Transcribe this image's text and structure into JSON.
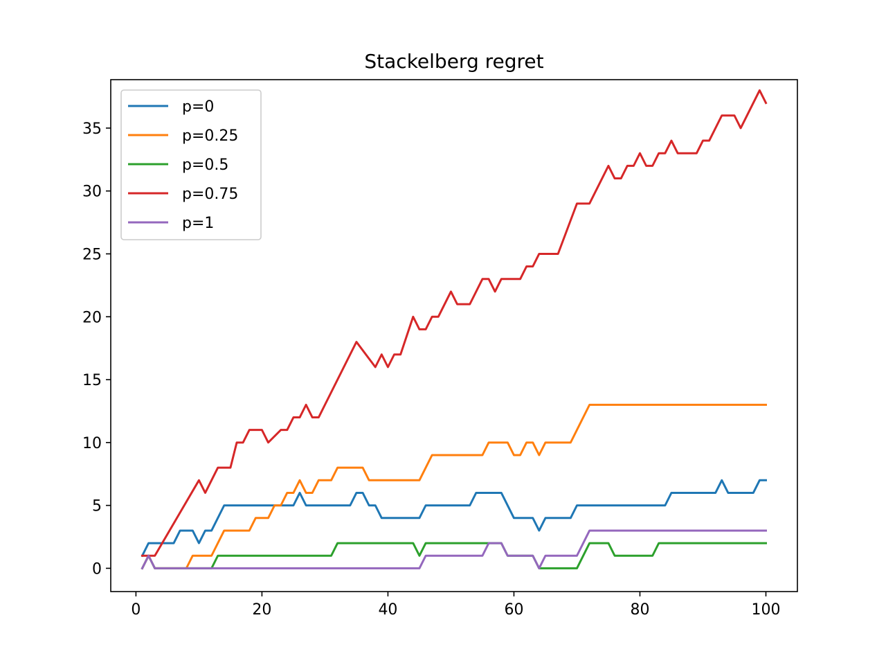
{
  "chart_data": {
    "type": "line",
    "title": "Stackelberg regret",
    "xlabel": "",
    "ylabel": "",
    "xlim": [
      -4,
      105
    ],
    "ylim": [
      -1.85,
      38.85
    ],
    "xticks": [
      0,
      20,
      40,
      60,
      80,
      100
    ],
    "yticks": [
      0,
      5,
      10,
      15,
      20,
      25,
      30,
      35
    ],
    "grid": false,
    "legend_position": "top-left",
    "series": [
      {
        "name": "p=0",
        "color": "#1f77b4",
        "x": [
          1,
          2,
          6,
          7,
          9,
          10,
          11,
          12,
          14,
          25,
          26,
          27,
          34,
          35,
          36,
          37,
          38,
          39,
          45,
          46,
          53,
          54,
          58,
          60,
          63,
          64,
          65,
          69,
          70,
          84,
          85,
          92,
          93,
          94,
          98,
          99,
          100
        ],
        "y": [
          1,
          2,
          2,
          3,
          3,
          2,
          3,
          3,
          5,
          5,
          6,
          5,
          5,
          6,
          6,
          5,
          5,
          4,
          4,
          5,
          5,
          6,
          6,
          4,
          4,
          3,
          4,
          4,
          5,
          5,
          6,
          6,
          7,
          6,
          6,
          7,
          7
        ]
      },
      {
        "name": "p=0.25",
        "color": "#ff7f0e",
        "x": [
          1,
          2,
          3,
          8,
          9,
          12,
          14,
          18,
          19,
          21,
          22,
          23,
          24,
          25,
          26,
          27,
          28,
          29,
          31,
          32,
          35,
          36,
          37,
          44,
          45,
          47,
          55,
          56,
          59,
          60,
          61,
          62,
          63,
          64,
          65,
          69,
          72,
          100
        ],
        "y": [
          0,
          1,
          0,
          0,
          1,
          1,
          3,
          3,
          4,
          4,
          5,
          5,
          6,
          6,
          7,
          6,
          6,
          7,
          7,
          8,
          8,
          8,
          7,
          7,
          7,
          9,
          9,
          10,
          10,
          9,
          9,
          10,
          10,
          9,
          10,
          10,
          13,
          13
        ]
      },
      {
        "name": "p=0.5",
        "color": "#2ca02c",
        "x": [
          1,
          2,
          3,
          12,
          13,
          31,
          32,
          44,
          45,
          46,
          55,
          56,
          58,
          59,
          63,
          64,
          69,
          70,
          72,
          75,
          76,
          82,
          83,
          100
        ],
        "y": [
          0,
          1,
          0,
          0,
          1,
          1,
          2,
          2,
          1,
          2,
          2,
          2,
          2,
          1,
          1,
          0,
          0,
          0,
          2,
          2,
          1,
          1,
          2,
          2
        ]
      },
      {
        "name": "p=0.75",
        "color": "#d62728",
        "x": [
          1,
          3,
          10,
          11,
          12,
          13,
          15,
          16,
          17,
          18,
          19,
          20,
          21,
          23,
          24,
          25,
          26,
          27,
          28,
          29,
          30,
          35,
          38,
          39,
          40,
          41,
          42,
          44,
          45,
          46,
          47,
          48,
          50,
          51,
          53,
          55,
          56,
          57,
          58,
          59,
          61,
          62,
          63,
          64,
          67,
          70,
          72,
          75,
          76,
          77,
          78,
          79,
          80,
          81,
          82,
          83,
          84,
          85,
          86,
          89,
          90,
          91,
          93,
          95,
          96,
          99,
          100
        ],
        "y": [
          1,
          1,
          7,
          6,
          7,
          8,
          8,
          10,
          10,
          11,
          11,
          11,
          10,
          11,
          11,
          12,
          12,
          13,
          12,
          12,
          13,
          18,
          16,
          17,
          16,
          17,
          17,
          20,
          19,
          19,
          20,
          20,
          22,
          21,
          21,
          23,
          23,
          22,
          23,
          23,
          23,
          24,
          24,
          25,
          25,
          29,
          29,
          32,
          31,
          31,
          32,
          32,
          33,
          32,
          32,
          33,
          33,
          34,
          33,
          33,
          34,
          34,
          36,
          36,
          35,
          38,
          37
        ]
      },
      {
        "name": "p=1",
        "color": "#9467bd",
        "x": [
          1,
          2,
          3,
          45,
          46,
          55,
          56,
          58,
          59,
          63,
          64,
          65,
          70,
          72,
          100
        ],
        "y": [
          0,
          1,
          0,
          0,
          1,
          1,
          2,
          2,
          1,
          1,
          0,
          1,
          1,
          3,
          3
        ]
      }
    ]
  }
}
